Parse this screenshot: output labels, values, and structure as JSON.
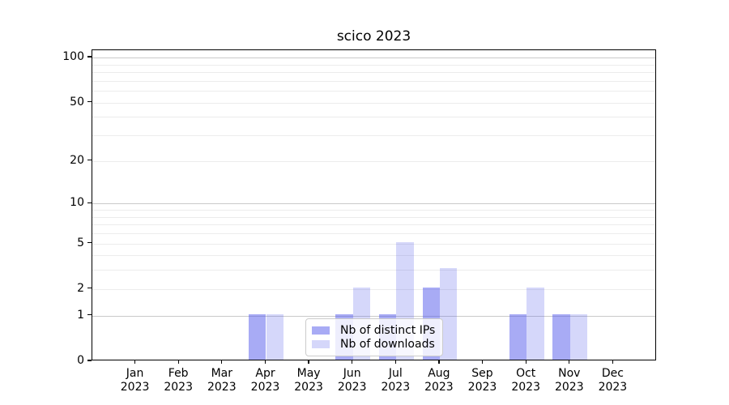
{
  "title": "scico 2023",
  "chart_data": {
    "type": "bar",
    "title": "scico 2023",
    "categories": [
      "Jan",
      "Feb",
      "Mar",
      "Apr",
      "May",
      "Jun",
      "Jul",
      "Aug",
      "Sep",
      "Oct",
      "Nov",
      "Dec"
    ],
    "year": "2023",
    "series": [
      {
        "name": "Nb of distinct IPs",
        "color": "rgba(81,88,235,0.5)",
        "values": [
          0,
          0,
          0,
          1,
          0,
          1,
          1,
          2,
          0,
          1,
          1,
          0
        ]
      },
      {
        "name": "Nb of downloads",
        "color": "rgba(81,88,235,0.24)",
        "values": [
          0,
          0,
          0,
          1,
          0,
          2,
          5,
          3,
          0,
          2,
          1,
          0
        ]
      }
    ],
    "xlabel": "",
    "ylabel": "",
    "yscale": "log1p",
    "ylim": [
      0,
      112
    ],
    "y_ticks": [
      0,
      1,
      2,
      5,
      10,
      20,
      50,
      100
    ],
    "y_major_gridlines": [
      1,
      10,
      100
    ],
    "y_minor_gridlines": [
      2,
      3,
      4,
      5,
      6,
      7,
      8,
      9,
      20,
      30,
      40,
      50,
      60,
      70,
      80,
      90
    ],
    "grid": "on",
    "legend_position": "lower center",
    "style": {
      "bar_fill_distinct_ips": "#a8acf5",
      "bar_fill_downloads": "#d8dbfa",
      "major_grid_color": "#c9c9c9",
      "minor_grid_color": "#ececec",
      "axis_color": "#000000",
      "background": "#ffffff"
    }
  },
  "legend": {
    "entries": [
      "Nb of distinct IPs",
      "Nb of downloads"
    ]
  }
}
